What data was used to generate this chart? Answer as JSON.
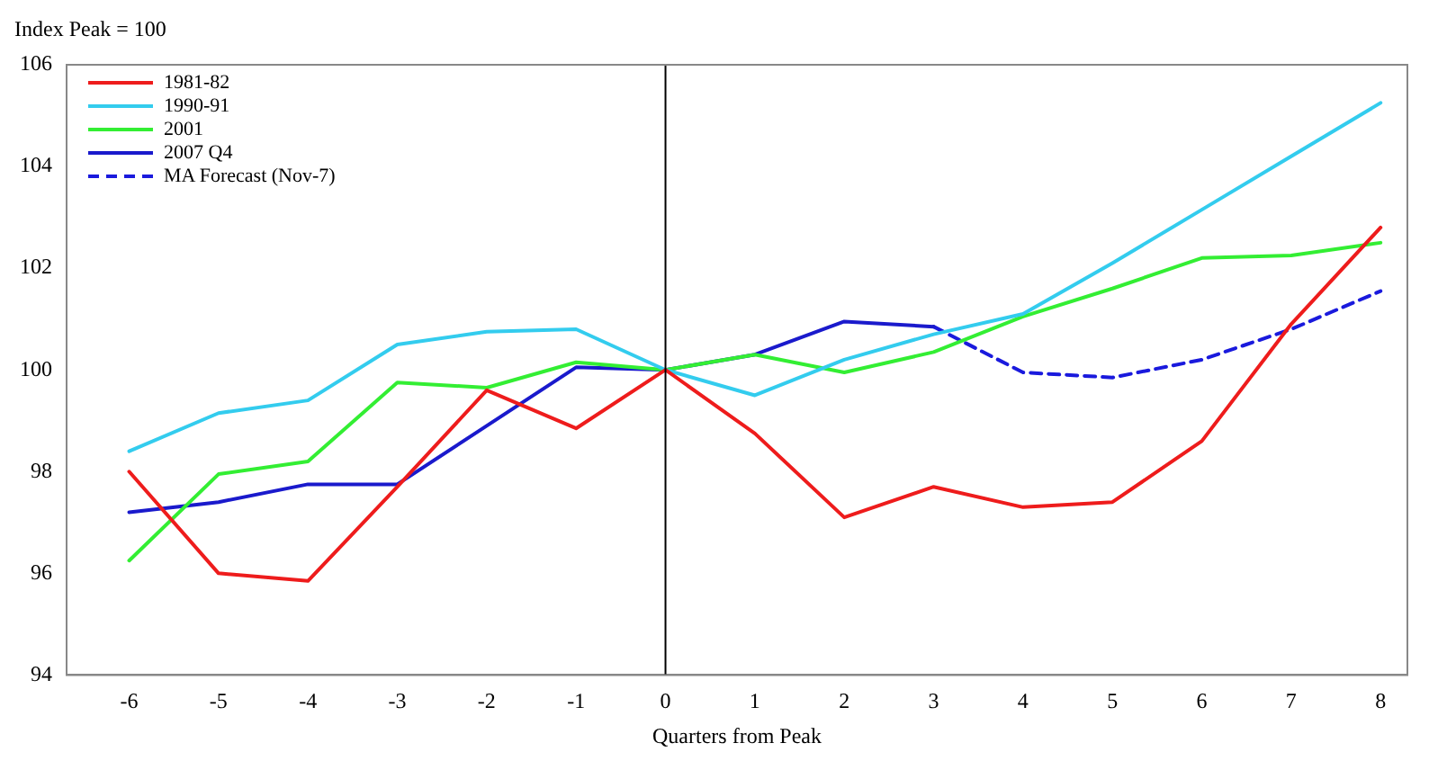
{
  "chart_data": {
    "type": "line",
    "ylabel": "Index Peak = 100",
    "xlabel": "Quarters from Peak",
    "x": [
      -6,
      -5,
      -4,
      -3,
      -2,
      -1,
      0,
      1,
      2,
      3,
      4,
      5,
      6,
      7,
      8
    ],
    "xlim": [
      -6.7,
      8.3
    ],
    "xticks": [
      -6,
      -5,
      -4,
      -3,
      -2,
      -1,
      0,
      1,
      2,
      3,
      4,
      5,
      6,
      7,
      8
    ],
    "ylim": [
      94,
      106
    ],
    "yticks": [
      94,
      96,
      98,
      100,
      102,
      104,
      106
    ],
    "grid": false,
    "legend": "top left",
    "marker": "none",
    "ref_lines": [
      {
        "axis": "x",
        "value": 0,
        "color": "#000000"
      }
    ],
    "series": [
      {
        "name": "1981-82",
        "color": "#ee1c1c",
        "values": [
          98.0,
          96.0,
          95.85,
          97.7,
          99.6,
          98.85,
          100,
          98.75,
          97.1,
          97.7,
          97.3,
          97.4,
          98.6,
          100.9,
          102.8
        ]
      },
      {
        "name": "1990-91",
        "color": "#33ccee",
        "values": [
          98.4,
          99.15,
          99.4,
          100.5,
          100.75,
          100.8,
          100,
          99.5,
          100.2,
          100.7,
          101.1,
          102.1,
          103.15,
          104.2,
          105.25
        ]
      },
      {
        "name": "2001",
        "color": "#33ee33",
        "values": [
          96.25,
          97.95,
          98.2,
          99.75,
          99.65,
          100.15,
          100,
          100.3,
          99.95,
          100.35,
          101.05,
          101.6,
          102.2,
          102.25,
          102.5
        ]
      },
      {
        "name": "2007 Q4",
        "color": "#1a1acc",
        "values": [
          97.2,
          97.4,
          97.75,
          97.75,
          98.9,
          100.05,
          100,
          100.3,
          100.95,
          100.85,
          null,
          null,
          null,
          null,
          null
        ]
      },
      {
        "name": "MA Forecast (Nov-7)",
        "color": "#1a1add",
        "line_style": "dashed",
        "values": [
          null,
          null,
          null,
          null,
          null,
          null,
          null,
          null,
          null,
          100.85,
          99.95,
          99.85,
          100.2,
          100.8,
          101.55
        ]
      }
    ]
  }
}
